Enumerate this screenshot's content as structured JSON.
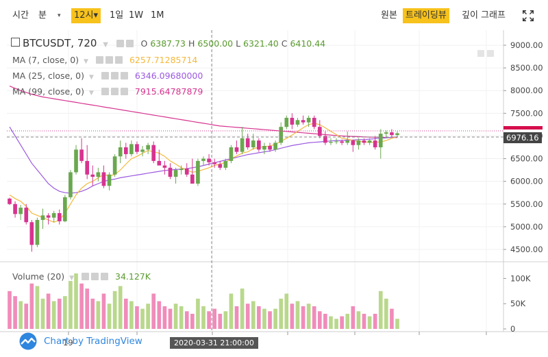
{
  "toolbar": {
    "items": [
      {
        "label": "시간",
        "active": false
      },
      {
        "label": "분",
        "active": false
      },
      {
        "label": "▾",
        "active": false
      },
      {
        "label": "12시▾",
        "active": true
      },
      {
        "label": "1일",
        "active": false
      },
      {
        "label": "1W",
        "active": false
      },
      {
        "label": "1M",
        "active": false
      }
    ],
    "right_items": [
      {
        "label": "원본",
        "active": false
      },
      {
        "label": "트레이딩뷰",
        "active": true
      },
      {
        "label": "깊이 그래프",
        "active": false
      }
    ],
    "fullscreen_icon": "expand-arrows-icon"
  },
  "legend": {
    "symbol": "BTCUSDT, 720",
    "o_label": "O",
    "o_value": "6387.73",
    "h_label": "H",
    "h_value": "6500.00",
    "l_label": "L",
    "l_value": "6321.40",
    "c_label": "C",
    "c_value": "6410.44",
    "ma": [
      {
        "name": "MA (7, close, 0)",
        "value": "6257.71285714",
        "color": "#f3b93c"
      },
      {
        "name": "MA (25, close, 0)",
        "value": "6346.09680000",
        "color": "#9b59e0"
      },
      {
        "name": "MA (99, close, 0)",
        "value": "7915.64787879",
        "color": "#d6338f"
      }
    ],
    "volume_name": "Volume (20)",
    "volume_value": "34.127K"
  },
  "price_badges": {
    "last_price": "6976.16",
    "last_color": "#444444",
    "current_color": "#d60f4d"
  },
  "crosshair": {
    "time_label": "2020-03-31 21:00:00"
  },
  "x_axis": {
    "labels": [
      "19"
    ]
  },
  "watermark": {
    "text": "Chart by TradingView",
    "icon": "tradingview-cloud-icon"
  },
  "colors": {
    "up": "#b9d88c",
    "down": "#f08cba",
    "up_body": "#6aa84f",
    "down_body": "#d6338f",
    "ma7": "#f3b93c",
    "ma25": "#9b59e0",
    "ma99": "#d6338f",
    "text_green": "#5a9b2e"
  },
  "chart_data": {
    "type": "candlestick",
    "price_axis_ticks": [
      "9000.00",
      "8500.00",
      "8000.00",
      "7500.00",
      "7000.00",
      "6500.00",
      "6000.00",
      "5500.00",
      "5000.00",
      "4500.00"
    ],
    "volume_axis_ticks": [
      "100K",
      "50K",
      "0"
    ],
    "ylim": [
      4200,
      9300
    ],
    "volume_ylim": [
      0,
      125000
    ],
    "candles": [
      {
        "o": 5620,
        "h": 5640,
        "l": 5480,
        "c": 5500
      },
      {
        "o": 5500,
        "h": 5560,
        "l": 5200,
        "c": 5280
      },
      {
        "o": 5280,
        "h": 5480,
        "l": 5150,
        "c": 5420
      },
      {
        "o": 5420,
        "h": 5500,
        "l": 5050,
        "c": 5100
      },
      {
        "o": 5100,
        "h": 5150,
        "l": 4450,
        "c": 4600
      },
      {
        "o": 4600,
        "h": 5200,
        "l": 4550,
        "c": 5150
      },
      {
        "o": 5150,
        "h": 5400,
        "l": 4950,
        "c": 5250
      },
      {
        "o": 5250,
        "h": 5300,
        "l": 5050,
        "c": 5200
      },
      {
        "o": 5200,
        "h": 5350,
        "l": 5100,
        "c": 5300
      },
      {
        "o": 5300,
        "h": 5380,
        "l": 5050,
        "c": 5120
      },
      {
        "o": 5120,
        "h": 5700,
        "l": 5100,
        "c": 5650
      },
      {
        "o": 5650,
        "h": 6250,
        "l": 5600,
        "c": 6200
      },
      {
        "o": 6200,
        "h": 6800,
        "l": 6150,
        "c": 6700
      },
      {
        "o": 6700,
        "h": 6950,
        "l": 6400,
        "c": 6450
      },
      {
        "o": 6450,
        "h": 6800,
        "l": 6050,
        "c": 6150
      },
      {
        "o": 6150,
        "h": 6350,
        "l": 5900,
        "c": 6100
      },
      {
        "o": 6100,
        "h": 6300,
        "l": 6000,
        "c": 6200
      },
      {
        "o": 6200,
        "h": 6350,
        "l": 5850,
        "c": 5900
      },
      {
        "o": 5900,
        "h": 6200,
        "l": 5800,
        "c": 6150
      },
      {
        "o": 6150,
        "h": 6600,
        "l": 6100,
        "c": 6550
      },
      {
        "o": 6550,
        "h": 6900,
        "l": 6400,
        "c": 6750
      },
      {
        "o": 6750,
        "h": 6850,
        "l": 6500,
        "c": 6600
      },
      {
        "o": 6600,
        "h": 6900,
        "l": 6550,
        "c": 6820
      },
      {
        "o": 6820,
        "h": 6880,
        "l": 6600,
        "c": 6650
      },
      {
        "o": 6650,
        "h": 6780,
        "l": 6550,
        "c": 6700
      },
      {
        "o": 6700,
        "h": 6850,
        "l": 6600,
        "c": 6800
      },
      {
        "o": 6800,
        "h": 6880,
        "l": 6400,
        "c": 6450
      },
      {
        "o": 6450,
        "h": 6700,
        "l": 6350,
        "c": 6350
      },
      {
        "o": 6350,
        "h": 6450,
        "l": 6150,
        "c": 6300
      },
      {
        "o": 6300,
        "h": 6400,
        "l": 6050,
        "c": 6100
      },
      {
        "o": 6100,
        "h": 6300,
        "l": 5950,
        "c": 6250
      },
      {
        "o": 6250,
        "h": 6350,
        "l": 6150,
        "c": 6280
      },
      {
        "o": 6280,
        "h": 6400,
        "l": 6100,
        "c": 6150
      },
      {
        "o": 6150,
        "h": 6500,
        "l": 5950,
        "c": 5950
      },
      {
        "o": 5950,
        "h": 6500,
        "l": 5900,
        "c": 6450
      },
      {
        "o": 6450,
        "h": 6550,
        "l": 6350,
        "c": 6500
      },
      {
        "o": 6500,
        "h": 6600,
        "l": 6350,
        "c": 6420
      },
      {
        "o": 6420,
        "h": 6500,
        "l": 6300,
        "c": 6380
      },
      {
        "o": 6380,
        "h": 6450,
        "l": 6250,
        "c": 6300
      },
      {
        "o": 6300,
        "h": 6500,
        "l": 6250,
        "c": 6450
      },
      {
        "o": 6450,
        "h": 6800,
        "l": 6400,
        "c": 6750
      },
      {
        "o": 6750,
        "h": 6900,
        "l": 6600,
        "c": 6650
      },
      {
        "o": 6650,
        "h": 7200,
        "l": 6600,
        "c": 6950
      },
      {
        "o": 6950,
        "h": 7050,
        "l": 6700,
        "c": 6750
      },
      {
        "o": 6750,
        "h": 7050,
        "l": 6700,
        "c": 6900
      },
      {
        "o": 6900,
        "h": 6950,
        "l": 6650,
        "c": 6700
      },
      {
        "o": 6700,
        "h": 6850,
        "l": 6600,
        "c": 6780
      },
      {
        "o": 6780,
        "h": 6850,
        "l": 6650,
        "c": 6700
      },
      {
        "o": 6700,
        "h": 6900,
        "l": 6650,
        "c": 6850
      },
      {
        "o": 6850,
        "h": 7300,
        "l": 6800,
        "c": 7200
      },
      {
        "o": 7200,
        "h": 7450,
        "l": 7150,
        "c": 7400
      },
      {
        "o": 7400,
        "h": 7500,
        "l": 7150,
        "c": 7250
      },
      {
        "o": 7250,
        "h": 7400,
        "l": 7200,
        "c": 7350
      },
      {
        "o": 7350,
        "h": 7450,
        "l": 7250,
        "c": 7300
      },
      {
        "o": 7300,
        "h": 7450,
        "l": 7200,
        "c": 7400
      },
      {
        "o": 7400,
        "h": 7450,
        "l": 7150,
        "c": 7200
      },
      {
        "o": 7200,
        "h": 7350,
        "l": 6950,
        "c": 7000
      },
      {
        "o": 7000,
        "h": 7100,
        "l": 6800,
        "c": 6850
      },
      {
        "o": 6850,
        "h": 6950,
        "l": 6800,
        "c": 6870
      },
      {
        "o": 6870,
        "h": 6950,
        "l": 6820,
        "c": 6880
      },
      {
        "o": 6880,
        "h": 6920,
        "l": 6800,
        "c": 6850
      },
      {
        "o": 6850,
        "h": 7100,
        "l": 6800,
        "c": 6900
      },
      {
        "o": 6900,
        "h": 6920,
        "l": 6650,
        "c": 6800
      },
      {
        "o": 6800,
        "h": 6950,
        "l": 6700,
        "c": 6900
      },
      {
        "o": 6900,
        "h": 6950,
        "l": 6800,
        "c": 6850
      },
      {
        "o": 6850,
        "h": 6950,
        "l": 6800,
        "c": 6900
      },
      {
        "o": 6900,
        "h": 7000,
        "l": 6700,
        "c": 6750
      },
      {
        "o": 6750,
        "h": 7150,
        "l": 6500,
        "c": 7050
      },
      {
        "o": 7050,
        "h": 7120,
        "l": 6950,
        "c": 7080
      },
      {
        "o": 7080,
        "h": 7150,
        "l": 6980,
        "c": 7020
      },
      {
        "o": 7020,
        "h": 7100,
        "l": 6980,
        "c": 7060
      }
    ],
    "ma7": [
      5700,
      5620,
      5560,
      5450,
      5300,
      5250,
      5200,
      5150,
      5100,
      5150,
      5300,
      5500,
      5700,
      5850,
      5950,
      6000,
      6080,
      6150,
      6120,
      6150,
      6250,
      6380,
      6500,
      6550,
      6620,
      6680,
      6650,
      6620,
      6550,
      6450,
      6380,
      6300,
      6250,
      6200,
      6220,
      6260,
      6300,
      6350,
      6380,
      6420,
      6500,
      6560,
      6620,
      6650,
      6720,
      6750,
      6760,
      6780,
      6820,
      6880,
      6950,
      7020,
      7100,
      7180,
      7250,
      7280,
      7250,
      7180,
      7100,
      7030,
      6950,
      6930,
      6900,
      6880,
      6870,
      6860,
      6860,
      6870,
      6900,
      6950,
      6980
    ],
    "ma25": [
      7200,
      7000,
      6800,
      6600,
      6400,
      6250,
      6100,
      5950,
      5850,
      5780,
      5750,
      5740,
      5750,
      5780,
      5830,
      5900,
      5950,
      6000,
      6030,
      6050,
      6080,
      6100,
      6120,
      6140,
      6160,
      6180,
      6200,
      6220,
      6240,
      6250,
      6260,
      6270,
      6280,
      6300,
      6320,
      6350,
      6380,
      6410,
      6440,
      6470,
      6500,
      6530,
      6560,
      6590,
      6610,
      6630,
      6650,
      6670,
      6700,
      6730,
      6760,
      6790,
      6810,
      6830,
      6850,
      6860,
      6870,
      6880,
      6890,
      6900,
      6900,
      6910,
      6910,
      6920,
      6920,
      6930,
      6940,
      6950,
      6960,
      6970,
      6980
    ],
    "ma99": [
      8100,
      8050,
      8000,
      7960,
      7920,
      7890,
      7860,
      7840,
      7820,
      7800,
      7780,
      7760,
      7740,
      7720,
      7700,
      7680,
      7660,
      7640,
      7620,
      7600,
      7580,
      7560,
      7540,
      7520,
      7500,
      7480,
      7460,
      7440,
      7420,
      7400,
      7380,
      7360,
      7340,
      7320,
      7300,
      7280,
      7260,
      7240,
      7220,
      7210,
      7200,
      7190,
      7180,
      7170,
      7160,
      7150,
      7140,
      7130,
      7120,
      7110,
      7100,
      7090,
      7080,
      7070,
      7060,
      7050,
      7040,
      7030,
      7020,
      7010,
      7000,
      6995,
      6990,
      6985,
      6980,
      6975,
      6972,
      6970,
      6968,
      6966,
      6965
    ],
    "volumes": [
      75000,
      65000,
      55000,
      50000,
      90000,
      85000,
      60000,
      70000,
      55000,
      60000,
      65000,
      95000,
      110000,
      90000,
      80000,
      60000,
      55000,
      70000,
      50000,
      75000,
      85000,
      60000,
      55000,
      45000,
      40000,
      50000,
      70000,
      55000,
      45000,
      40000,
      50000,
      45000,
      35000,
      30000,
      60000,
      45000,
      35000,
      40000,
      30000,
      35000,
      70000,
      45000,
      80000,
      50000,
      55000,
      45000,
      40000,
      35000,
      40000,
      60000,
      70000,
      50000,
      55000,
      45000,
      50000,
      45000,
      35000,
      30000,
      25000,
      20000,
      25000,
      30000,
      45000,
      35000,
      30000,
      25000,
      30000,
      75000,
      60000,
      40000,
      20000
    ]
  }
}
